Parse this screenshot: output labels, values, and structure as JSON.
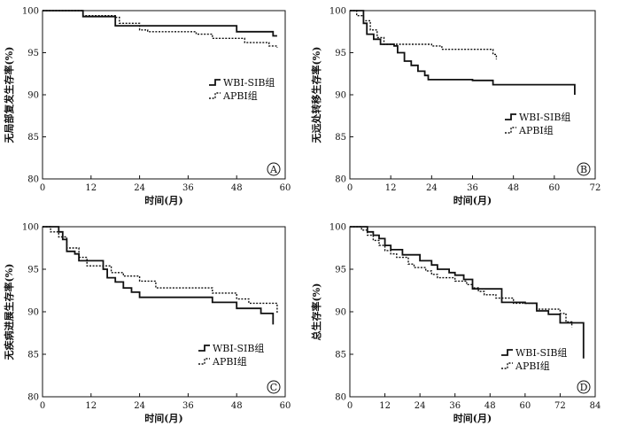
{
  "chart_data": [
    {
      "type": "line",
      "step": true,
      "panel_label": "A",
      "xlabel": "时间(月)",
      "ylabel": "无局部复发生存率(%)",
      "xlim": [
        0,
        60
      ],
      "ylim": [
        80,
        100
      ],
      "xticks": [
        0,
        12,
        24,
        36,
        48,
        60
      ],
      "yticks": [
        80,
        85,
        90,
        95,
        100
      ],
      "legend_position": "center-right",
      "series": [
        {
          "name": "WBI-SIB组",
          "style": "solid",
          "x": [
            0,
            10,
            18,
            48,
            57,
            58
          ],
          "y": [
            100,
            99.3,
            98.2,
            97.5,
            97,
            97
          ]
        },
        {
          "name": "APBI组",
          "style": "dotted",
          "x": [
            0,
            10,
            18,
            19,
            24,
            26,
            38,
            42,
            50,
            56,
            58
          ],
          "y": [
            100,
            99.4,
            99.2,
            98.5,
            97.7,
            97.5,
            97.2,
            96.7,
            96.2,
            95.8,
            95.6
          ]
        }
      ]
    },
    {
      "type": "line",
      "step": true,
      "panel_label": "B",
      "xlabel": "时间(月)",
      "ylabel": "无远处转移生存率(%)",
      "xlim": [
        0,
        72
      ],
      "ylim": [
        80,
        100
      ],
      "xticks": [
        0,
        12,
        24,
        36,
        48,
        60,
        72
      ],
      "yticks": [
        80,
        85,
        90,
        95,
        100
      ],
      "legend_position": "bottom-right",
      "series": [
        {
          "name": "WBI-SIB组",
          "style": "solid",
          "x": [
            0,
            4,
            5,
            7,
            9,
            13,
            14,
            16,
            18,
            20,
            22,
            23,
            36,
            42,
            66,
            66
          ],
          "y": [
            100,
            98.5,
            97.2,
            96.6,
            96,
            95.8,
            95,
            94,
            93.5,
            92.8,
            92.3,
            91.8,
            91.7,
            91.2,
            91.2,
            90
          ]
        },
        {
          "name": "APBI组",
          "style": "dotted",
          "x": [
            0,
            2,
            4,
            6,
            8,
            10,
            11,
            24,
            27,
            42,
            43
          ],
          "y": [
            100,
            99.4,
            98.8,
            97.7,
            96.8,
            96,
            96,
            95.8,
            95.4,
            94.8,
            94.2
          ]
        }
      ]
    },
    {
      "type": "line",
      "step": true,
      "panel_label": "C",
      "xlabel": "时间(月)",
      "ylabel": "无疾病进展生存率(%)",
      "xlim": [
        0,
        60
      ],
      "ylim": [
        80,
        100
      ],
      "xticks": [
        0,
        12,
        24,
        36,
        48,
        60
      ],
      "yticks": [
        80,
        85,
        90,
        95,
        100
      ],
      "legend_position": "bottom-left",
      "series": [
        {
          "name": "WBI-SIB组",
          "style": "solid",
          "x": [
            0,
            4,
            5,
            6,
            8,
            9,
            15,
            16,
            18,
            20,
            22,
            24,
            42,
            48,
            54,
            57,
            57
          ],
          "y": [
            100,
            99.4,
            98.5,
            97.1,
            96.8,
            96,
            95,
            94,
            93.5,
            92.8,
            92.3,
            91.7,
            91.1,
            90.4,
            89.8,
            89.3,
            88.5
          ]
        },
        {
          "name": "APBI组",
          "style": "dotted",
          "x": [
            0,
            2,
            4,
            6,
            9,
            11,
            17,
            20,
            24,
            28,
            42,
            48,
            51,
            58,
            58
          ],
          "y": [
            100,
            99.4,
            98.8,
            97.5,
            96.4,
            95.4,
            94.6,
            94.2,
            93.6,
            92.8,
            92.2,
            91.5,
            91,
            90.5,
            89.8
          ]
        }
      ]
    },
    {
      "type": "line",
      "step": true,
      "panel_label": "D",
      "xlabel": "时间(月)",
      "ylabel": "总生存率(%)",
      "xlim": [
        0,
        84
      ],
      "ylim": [
        80,
        100
      ],
      "xticks": [
        0,
        12,
        24,
        36,
        48,
        60,
        72,
        84
      ],
      "yticks": [
        80,
        85,
        90,
        95,
        100
      ],
      "legend_position": "bottom-left",
      "series": [
        {
          "name": "WBI-SIB组",
          "style": "solid",
          "x": [
            0,
            6,
            8,
            10,
            12,
            14,
            18,
            24,
            28,
            30,
            34,
            36,
            39,
            42,
            52,
            60,
            64,
            68,
            72,
            80,
            80
          ],
          "y": [
            100,
            99.4,
            99,
            98.6,
            97.8,
            97.3,
            96.7,
            96,
            95.5,
            95,
            94.6,
            94.3,
            93.8,
            92.7,
            91.1,
            91,
            90.1,
            89.7,
            88.7,
            88.7,
            84.5
          ]
        },
        {
          "name": "APBI组",
          "style": "dotted",
          "x": [
            0,
            4,
            6,
            8,
            10,
            12,
            14,
            16,
            20,
            22,
            26,
            28,
            30,
            36,
            40,
            42,
            44,
            46,
            50,
            56,
            64,
            72,
            74,
            76
          ],
          "y": [
            100,
            99.6,
            99,
            98.4,
            97.8,
            97.2,
            96.8,
            96.4,
            95.6,
            95.2,
            94.8,
            94.4,
            94,
            93.6,
            93.2,
            92.8,
            92.4,
            92,
            91.6,
            91,
            90.3,
            89.8,
            88.8,
            88.2
          ]
        }
      ]
    }
  ]
}
